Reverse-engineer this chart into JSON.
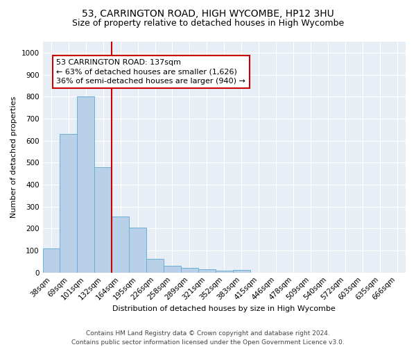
{
  "title": "53, CARRINGTON ROAD, HIGH WYCOMBE, HP12 3HU",
  "subtitle": "Size of property relative to detached houses in High Wycombe",
  "xlabel": "Distribution of detached houses by size in High Wycombe",
  "ylabel": "Number of detached properties",
  "bin_labels": [
    "38sqm",
    "69sqm",
    "101sqm",
    "132sqm",
    "164sqm",
    "195sqm",
    "226sqm",
    "258sqm",
    "289sqm",
    "321sqm",
    "352sqm",
    "383sqm",
    "415sqm",
    "446sqm",
    "478sqm",
    "509sqm",
    "540sqm",
    "572sqm",
    "603sqm",
    "635sqm",
    "666sqm"
  ],
  "bar_heights": [
    110,
    630,
    800,
    480,
    255,
    205,
    63,
    30,
    22,
    14,
    10,
    12,
    0,
    0,
    0,
    0,
    0,
    0,
    0,
    0,
    0
  ],
  "bar_color": "#b8d0e8",
  "bar_edge_color": "#6aaed6",
  "vline_position": 3.5,
  "annotation_line1": "53 CARRINGTON ROAD: 137sqm",
  "annotation_line2": "← 63% of detached houses are smaller (1,626)",
  "annotation_line3": "36% of semi-detached houses are larger (940) →",
  "vline_color": "#cc0000",
  "annotation_box_edgecolor": "#cc0000",
  "footer_line1": "Contains HM Land Registry data © Crown copyright and database right 2024.",
  "footer_line2": "Contains public sector information licensed under the Open Government Licence v3.0.",
  "ylim": [
    0,
    1050
  ],
  "yticks": [
    0,
    100,
    200,
    300,
    400,
    500,
    600,
    700,
    800,
    900,
    1000
  ],
  "background_color": "#e8eef5",
  "plot_background": "#ffffff",
  "title_fontsize": 10,
  "subtitle_fontsize": 9,
  "axis_label_fontsize": 8,
  "tick_fontsize": 7.5,
  "footer_fontsize": 6.5,
  "annotation_fontsize": 8
}
